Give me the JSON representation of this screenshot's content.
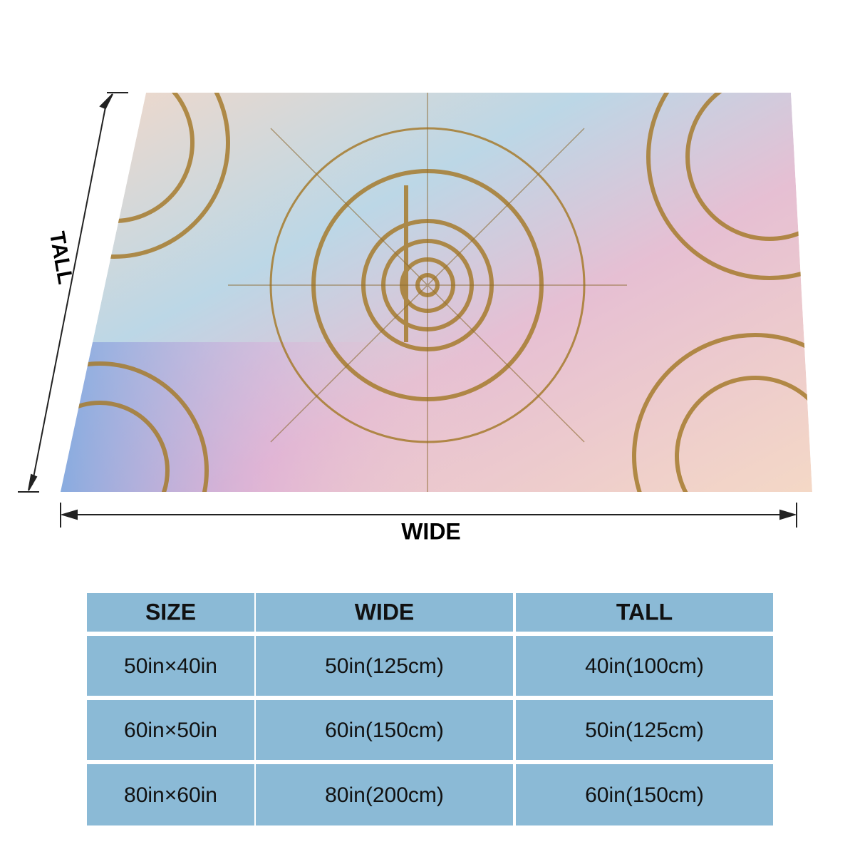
{
  "dimension_labels": {
    "tall": "TALL",
    "wide": "WIDE"
  },
  "table": {
    "header": [
      "SIZE",
      "WIDE",
      "TALL"
    ],
    "rows": [
      [
        "50in×40in",
        "50in(125cm)",
        "40in(100cm)"
      ],
      [
        "60in×50in",
        "60in(150cm)",
        "50in(125cm)"
      ],
      [
        "80in×60in",
        "80in(200cm)",
        "60in(150cm)"
      ]
    ]
  }
}
